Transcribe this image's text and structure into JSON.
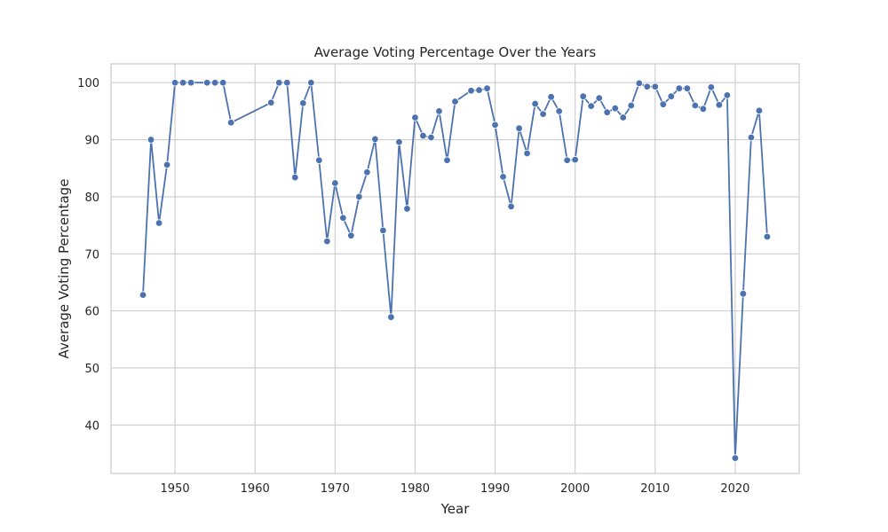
{
  "chart_data": {
    "type": "line",
    "title": "Average Voting Percentage Over the Years",
    "xlabel": "Year",
    "ylabel": "Average Voting Percentage",
    "xlim": [
      1942,
      2028
    ],
    "ylim": [
      31.5,
      103.3
    ],
    "x_ticks": [
      1950,
      1960,
      1970,
      1980,
      1990,
      2000,
      2010,
      2020
    ],
    "y_ticks": [
      40,
      50,
      60,
      70,
      80,
      90,
      100
    ],
    "grid": true,
    "markers": true,
    "color": "#4c72b0",
    "series": [
      {
        "x": [
          1946,
          1947,
          1948,
          1949,
          1950,
          1951,
          1952,
          1954,
          1955,
          1956,
          1957,
          1962,
          1963,
          1964,
          1965,
          1966,
          1967,
          1968,
          1969,
          1970,
          1971,
          1972,
          1973,
          1974,
          1975,
          1976,
          1977,
          1978,
          1979,
          1980,
          1981,
          1982,
          1983,
          1984,
          1985,
          1987,
          1988,
          1989,
          1990,
          1991,
          1992,
          1993,
          1994,
          1995,
          1996,
          1997,
          1998,
          1999,
          2000,
          2001,
          2002,
          2003,
          2004,
          2005,
          2006,
          2007,
          2008,
          2009,
          2010,
          2011,
          2012,
          2013,
          2014,
          2015,
          2016,
          2017,
          2018,
          2019,
          2020,
          2021,
          2022,
          2023,
          2024
        ],
        "y": [
          62.8,
          90.0,
          75.4,
          85.6,
          100.0,
          100.0,
          100.0,
          100.0,
          100.0,
          100.0,
          93.0,
          96.5,
          100.0,
          100.0,
          83.4,
          96.4,
          100.0,
          86.4,
          72.2,
          82.4,
          76.3,
          73.2,
          80.0,
          84.3,
          90.1,
          74.1,
          58.9,
          89.6,
          77.9,
          93.9,
          90.7,
          90.4,
          95.0,
          86.4,
          96.7,
          98.6,
          98.7,
          99.0,
          92.6,
          83.5,
          78.3,
          92.0,
          87.6,
          96.3,
          94.5,
          97.5,
          95.0,
          86.4,
          86.5,
          97.6,
          95.9,
          97.3,
          94.8,
          95.5,
          93.9,
          96.0,
          99.9,
          99.3,
          99.3,
          96.2,
          97.6,
          99.0,
          99.0,
          96.0,
          95.4,
          99.2,
          96.1,
          97.8,
          34.2,
          63.0,
          90.4,
          95.1,
          73.0
        ]
      }
    ]
  }
}
